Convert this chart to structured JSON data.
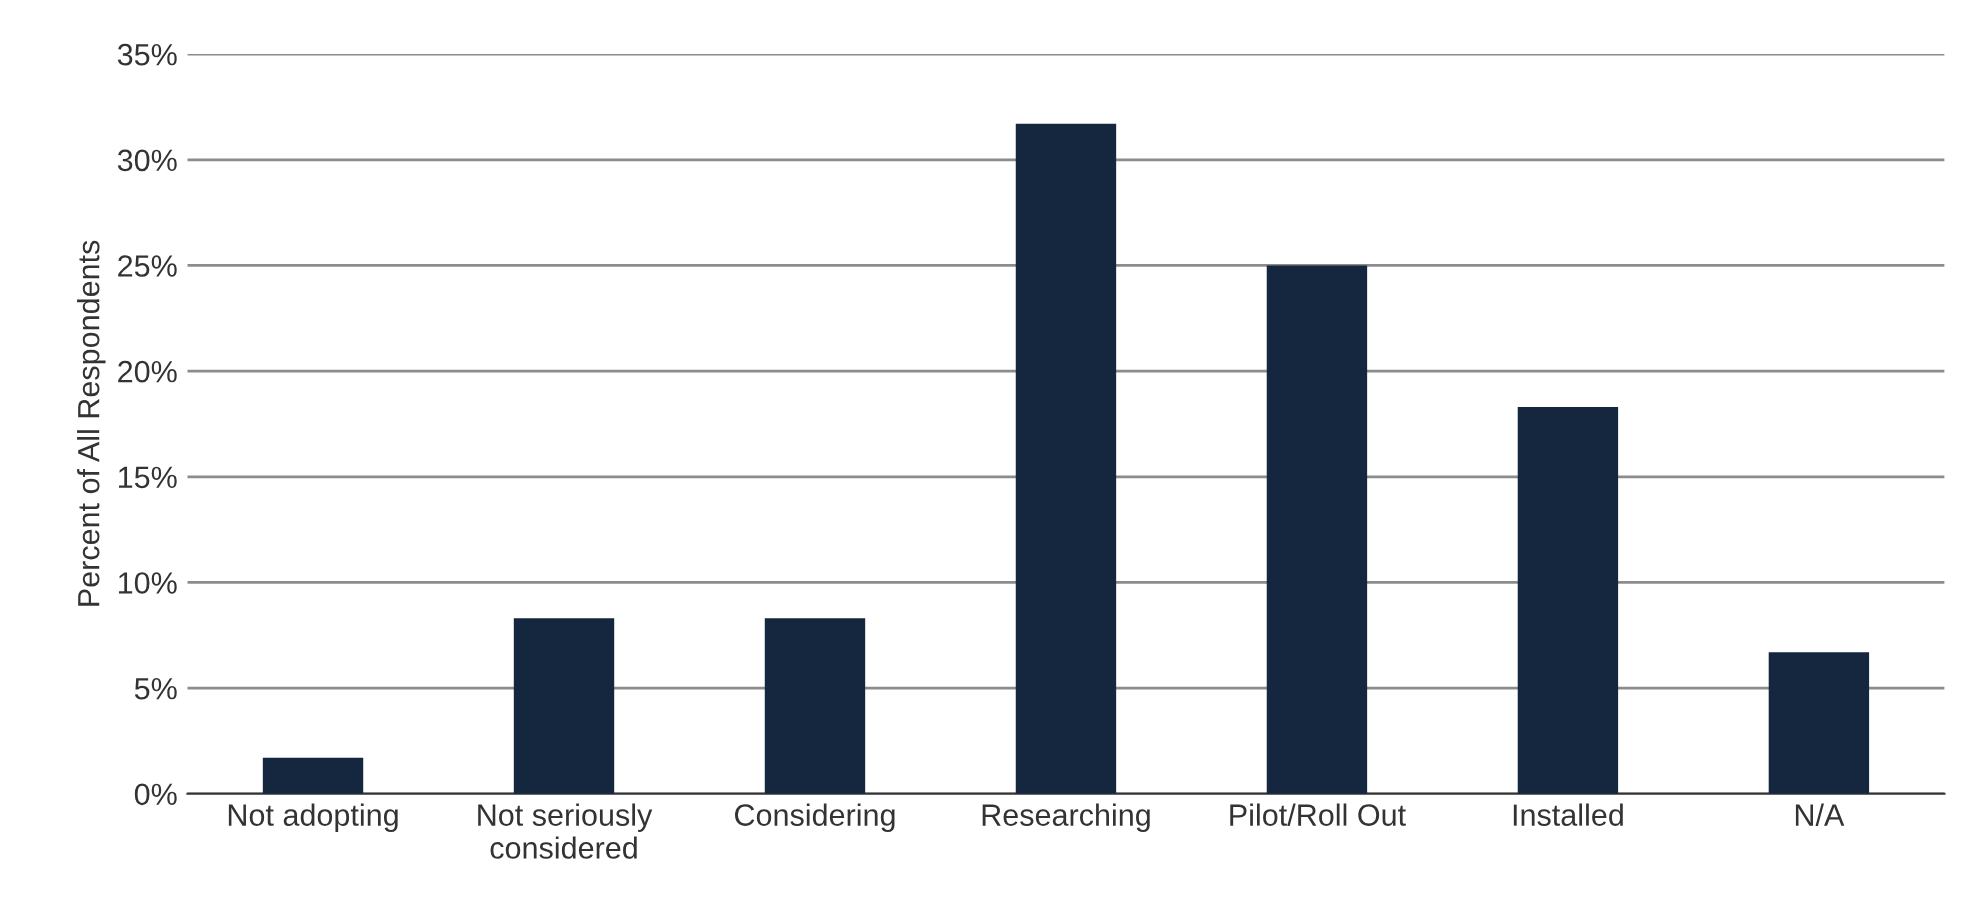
{
  "chart_data": {
    "type": "bar",
    "ylabel": "Percent of All Respondents",
    "categories": [
      "Not adopting",
      "Not seriously\nconsidered",
      "Considering",
      "Researching",
      "Pilot/Roll Out",
      "Installed",
      "N/A"
    ],
    "values": [
      1.7,
      8.3,
      8.3,
      31.7,
      25.0,
      18.3,
      6.7
    ],
    "color": "#15263f",
    "ylim": [
      0,
      35
    ],
    "yticks": [
      {
        "value": 0,
        "label": "0%"
      },
      {
        "value": 5,
        "label": "5%"
      },
      {
        "value": 10,
        "label": "10%"
      },
      {
        "value": 15,
        "label": "15%"
      },
      {
        "value": 20,
        "label": "20%"
      },
      {
        "value": 25,
        "label": "25%"
      },
      {
        "value": 30,
        "label": "30%"
      },
      {
        "value": 35,
        "label": "35%"
      }
    ],
    "grid": "y",
    "legend": false
  }
}
